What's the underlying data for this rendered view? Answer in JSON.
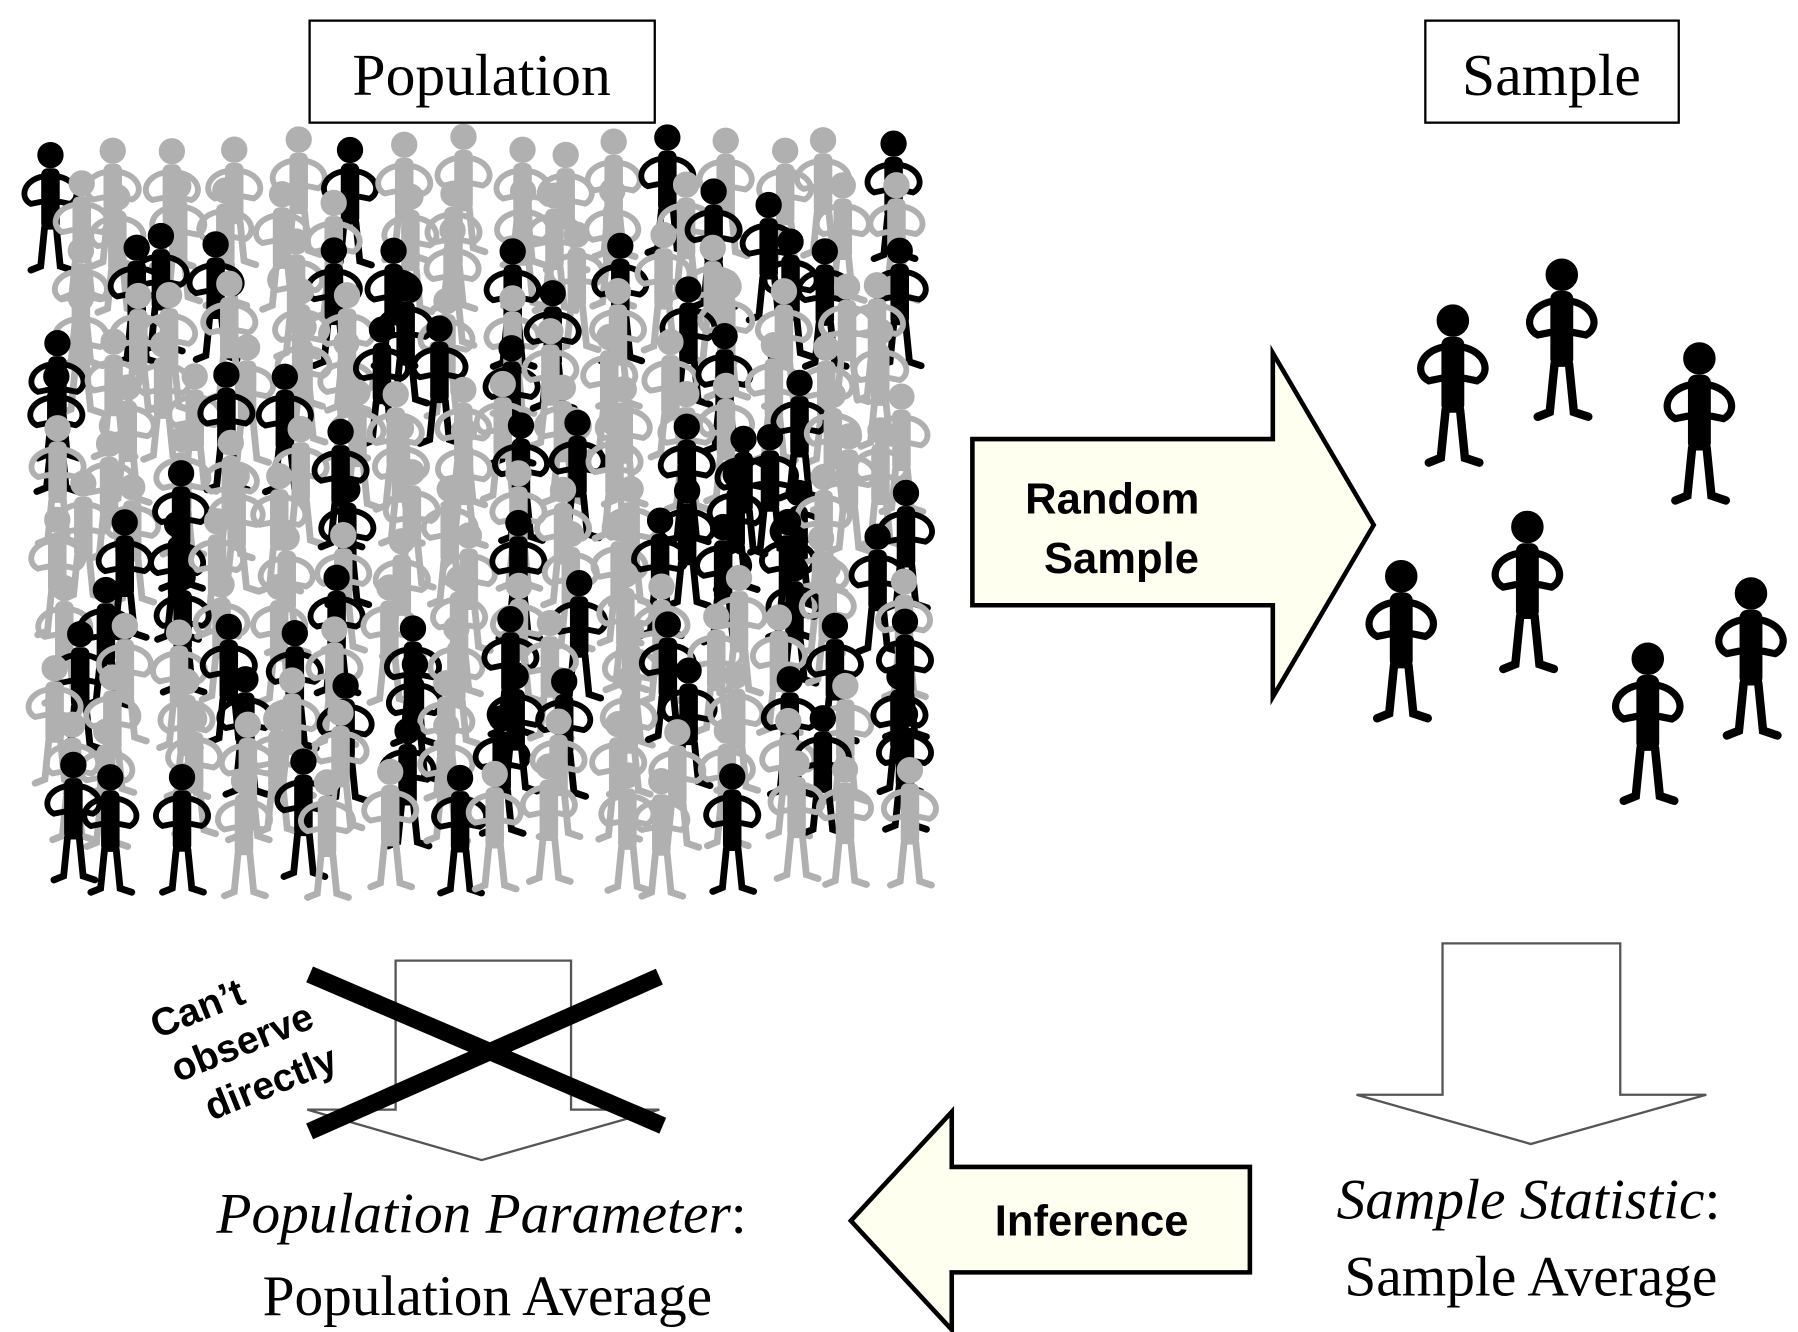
{
  "boxes": {
    "population": "Population",
    "sample": "Sample"
  },
  "arrows": {
    "random_sample": [
      "Random",
      "Sample"
    ],
    "inference": "Inference"
  },
  "crossed_note": [
    "Can’t",
    "observe",
    "directly"
  ],
  "population_result": {
    "term": "Population Parameter",
    "separator": ":",
    "value": "Population Average"
  },
  "sample_result": {
    "term": "Sample Statistic",
    "separator": ":",
    "value": "Sample Average"
  }
}
